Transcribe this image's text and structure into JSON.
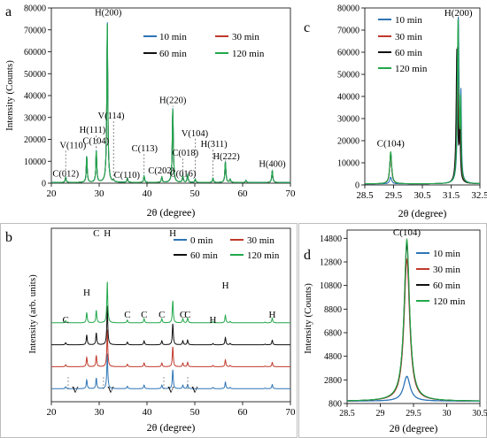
{
  "panels": {
    "a": "a",
    "b": "b",
    "c": "c",
    "d": "d"
  },
  "colors": {
    "t10": "#2e75b6",
    "t30": "#c0392b",
    "t60": "#111111",
    "t120": "#22a84a",
    "t0": "#2e75b6",
    "guide": "#555555"
  },
  "chart_data": [
    {
      "panel": "a",
      "type": "line",
      "xlabel": "2θ (degree)",
      "ylabel": "Intensity (Counts)",
      "xlim": [
        20,
        70
      ],
      "ylim": [
        0,
        80000
      ],
      "xticks": [
        20,
        30,
        40,
        50,
        60,
        70
      ],
      "yticks": [
        0,
        10000,
        20000,
        30000,
        40000,
        50000,
        60000,
        70000,
        80000
      ],
      "legend": [
        "10 min",
        "30 min",
        "60 min",
        "120 min"
      ],
      "legend_position": "top-right",
      "peaks": [
        {
          "x": 23.0,
          "y": 2500,
          "w": 0.12
        },
        {
          "x": 27.4,
          "y": 12000,
          "w": 0.12
        },
        {
          "x": 29.4,
          "y": 14500,
          "w": 0.12
        },
        {
          "x": 31.7,
          "y": 74000,
          "w": 0.13
        },
        {
          "x": 33.0,
          "y": 800,
          "w": 0.12
        },
        {
          "x": 35.9,
          "y": 2000,
          "w": 0.12
        },
        {
          "x": 39.4,
          "y": 3000,
          "w": 0.12
        },
        {
          "x": 43.1,
          "y": 2500,
          "w": 0.12
        },
        {
          "x": 45.4,
          "y": 34000,
          "w": 0.13
        },
        {
          "x": 47.5,
          "y": 3000,
          "w": 0.12
        },
        {
          "x": 48.5,
          "y": 3500,
          "w": 0.12
        },
        {
          "x": 50.1,
          "y": 1500,
          "w": 0.12
        },
        {
          "x": 53.8,
          "y": 2000,
          "w": 0.12
        },
        {
          "x": 56.4,
          "y": 9500,
          "w": 0.13
        },
        {
          "x": 57.4,
          "y": 1500,
          "w": 0.12
        },
        {
          "x": 60.7,
          "y": 1000,
          "w": 0.12
        },
        {
          "x": 66.2,
          "y": 5500,
          "w": 0.13
        }
      ],
      "labels": [
        {
          "text": "H(200)",
          "x": 31.9,
          "y": 76500
        },
        {
          "text": "C(012)",
          "x": 23.0,
          "y": 3000
        },
        {
          "text": "V(110)",
          "x": 24.5,
          "y": 16000
        },
        {
          "text": "H(111)",
          "x": 28.6,
          "y": 23000
        },
        {
          "text": "C(104)",
          "x": 29.3,
          "y": 18000
        },
        {
          "text": "V(114)",
          "x": 32.5,
          "y": 29500
        },
        {
          "text": "C(110)",
          "x": 35.8,
          "y": 2500
        },
        {
          "text": "C(113)",
          "x": 39.5,
          "y": 14500
        },
        {
          "text": "C(202)",
          "x": 43.0,
          "y": 4500
        },
        {
          "text": "H(220)",
          "x": 45.4,
          "y": 36500
        },
        {
          "text": "V(104)",
          "x": 50.0,
          "y": 21500
        },
        {
          "text": "C(018)",
          "x": 48.0,
          "y": 12500
        },
        {
          "text": "C(016)",
          "x": 47.5,
          "y": 3000
        },
        {
          "text": "H(311)",
          "x": 54.0,
          "y": 16500
        },
        {
          "text": "H(222)",
          "x": 56.6,
          "y": 11000
        },
        {
          "text": "H(400)",
          "x": 66.2,
          "y": 7500
        }
      ]
    },
    {
      "panel": "b",
      "type": "line",
      "xlabel": "2θ (degree)",
      "ylabel": "Intensity (arb. units)",
      "xlim": [
        20,
        70
      ],
      "xticks": [
        20,
        30,
        40,
        50,
        60,
        70
      ],
      "legend": [
        "0 min",
        "30 min",
        "60 min",
        "120 min"
      ],
      "legend_position": "top-right",
      "offsets": [
        0,
        1,
        2,
        3
      ],
      "peaks": [
        {
          "x": 23.0,
          "y": 0.16
        },
        {
          "x": 27.4,
          "y": 0.75
        },
        {
          "x": 29.4,
          "y": 0.9
        },
        {
          "x": 31.7,
          "y": 3.0
        },
        {
          "x": 35.9,
          "y": 0.2
        },
        {
          "x": 39.4,
          "y": 0.3
        },
        {
          "x": 43.1,
          "y": 0.3
        },
        {
          "x": 45.4,
          "y": 1.6
        },
        {
          "x": 47.5,
          "y": 0.3
        },
        {
          "x": 48.5,
          "y": 0.35
        },
        {
          "x": 53.8,
          "y": 0.1
        },
        {
          "x": 56.4,
          "y": 0.55
        },
        {
          "x": 57.4,
          "y": 0.1
        },
        {
          "x": 64.7,
          "y": 0.05
        },
        {
          "x": 66.2,
          "y": 0.35
        }
      ],
      "labels": [
        {
          "text": "C",
          "x": 23.0
        },
        {
          "text": "H",
          "x": 27.4
        },
        {
          "text": "C",
          "x": 29.4
        },
        {
          "text": "H",
          "x": 31.7
        },
        {
          "text": "C",
          "x": 35.9
        },
        {
          "text": "C",
          "x": 39.4
        },
        {
          "text": "C",
          "x": 43.1
        },
        {
          "text": "H",
          "x": 45.4
        },
        {
          "text": "C",
          "x": 47.5
        },
        {
          "text": "C",
          "x": 48.5
        },
        {
          "text": "H",
          "x": 53.8
        },
        {
          "text": "H",
          "x": 56.4
        },
        {
          "text": "H",
          "x": 66.2
        },
        {
          "text": "V",
          "x": 25.0
        },
        {
          "text": "V",
          "x": 32.4
        },
        {
          "text": "V",
          "x": 45.0
        },
        {
          "text": "V",
          "x": 50.0
        }
      ]
    },
    {
      "panel": "c",
      "type": "line",
      "xlabel": "2θ (degree)",
      "ylabel": "",
      "xlim": [
        28.5,
        32.5
      ],
      "ylim": [
        0,
        80000
      ],
      "xticks": [
        28.5,
        29.5,
        30.5,
        31.5,
        32.5
      ],
      "yticks": [
        0,
        10000,
        20000,
        30000,
        40000,
        50000,
        60000,
        70000,
        80000
      ],
      "legend": [
        "10 min",
        "30 min",
        "60 min",
        "120 min"
      ],
      "legend_position": "top-left",
      "series": [
        {
          "name": "10 min",
          "peaks": [
            {
              "x": 29.4,
              "y": 3000,
              "w": 0.04
            },
            {
              "x": 31.75,
              "y": 74000,
              "w": 0.03
            },
            {
              "x": 31.84,
              "y": 36000,
              "w": 0.02
            }
          ]
        },
        {
          "name": "30 min",
          "peaks": [
            {
              "x": 29.4,
              "y": 13000,
              "w": 0.04
            },
            {
              "x": 31.72,
              "y": 61000,
              "w": 0.03
            },
            {
              "x": 31.82,
              "y": 30000,
              "w": 0.02
            }
          ]
        },
        {
          "name": "60 min",
          "peaks": [
            {
              "x": 29.4,
              "y": 14000,
              "w": 0.04
            },
            {
              "x": 31.7,
              "y": 60000,
              "w": 0.03
            },
            {
              "x": 31.8,
              "y": 29000,
              "w": 0.02
            }
          ]
        },
        {
          "name": "120 min",
          "peaks": [
            {
              "x": 29.4,
              "y": 14500,
              "w": 0.04
            },
            {
              "x": 31.74,
              "y": 73000,
              "w": 0.03
            },
            {
              "x": 31.83,
              "y": 33000,
              "w": 0.02
            }
          ]
        }
      ],
      "labels": [
        {
          "text": "H(200)",
          "x": 31.75,
          "y": 76500
        },
        {
          "text": "C(104)",
          "x": 29.4,
          "y": 17500
        }
      ]
    },
    {
      "panel": "d",
      "type": "line",
      "xlabel": "2θ (degree)",
      "ylabel": "Intensity (Counts)",
      "xlim": [
        28.5,
        30.5
      ],
      "ylim": [
        800,
        15500
      ],
      "xticks": [
        28.5,
        29,
        29.5,
        30,
        30.5
      ],
      "yticks": [
        800,
        2800,
        4800,
        6800,
        8800,
        10800,
        12800,
        14800
      ],
      "legend": [
        "10 min",
        "30 min",
        "60 min",
        "120 min"
      ],
      "legend_position": "top-right",
      "series": [
        {
          "name": "10 min",
          "peak": {
            "x": 29.4,
            "y": 3100,
            "w": 0.06
          }
        },
        {
          "name": "30 min",
          "peak": {
            "x": 29.4,
            "y": 13000,
            "w": 0.05
          }
        },
        {
          "name": "60 min",
          "peak": {
            "x": 29.4,
            "y": 14300,
            "w": 0.05
          }
        },
        {
          "name": "120 min",
          "peak": {
            "x": 29.4,
            "y": 14700,
            "w": 0.05
          }
        }
      ],
      "labels": [
        {
          "text": "C(104)",
          "x": 29.4,
          "y": 15200
        }
      ]
    }
  ]
}
